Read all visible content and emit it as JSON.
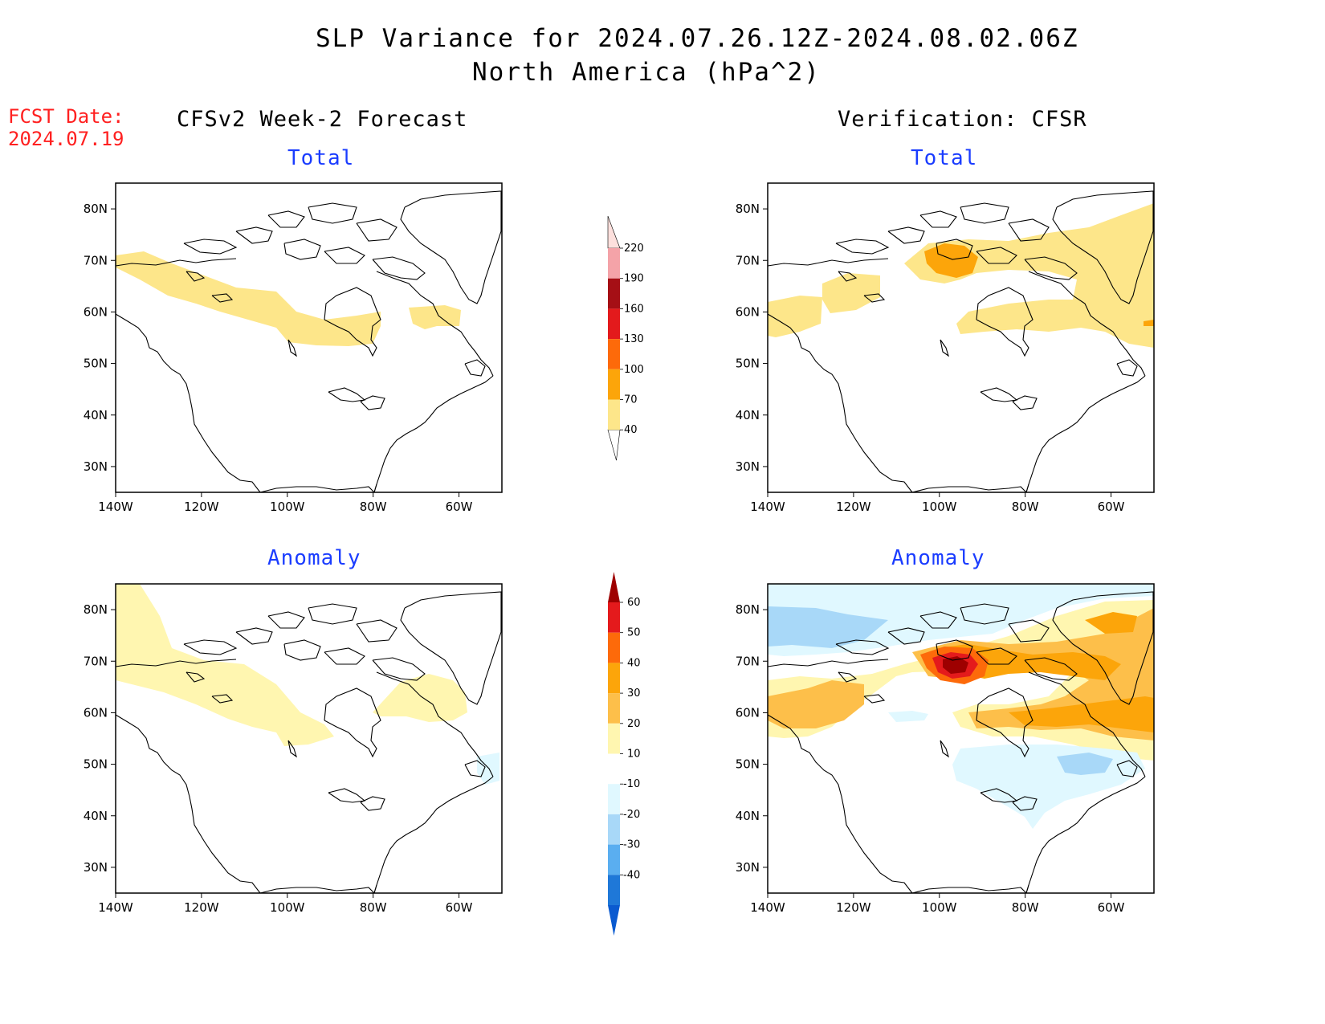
{
  "title": {
    "line1": "SLP Variance for 2024.07.26.12Z-2024.08.02.06Z",
    "line2": "North America (hPa^2)"
  },
  "fcst": {
    "label": "FCST Date:",
    "date": "2024.07.19"
  },
  "columns": {
    "left": "CFSv2 Week-2 Forecast",
    "right": "Verification: CFSR"
  },
  "panels": {
    "total_label": "Total",
    "anomaly_label": "Anomaly"
  },
  "axes": {
    "lat_labels": [
      "80N",
      "70N",
      "60N",
      "50N",
      "40N",
      "30N"
    ],
    "lon_labels": [
      "140W",
      "120W",
      "100W",
      "80W",
      "60W"
    ],
    "lon_range": [
      -140,
      -50
    ],
    "lat_range": [
      25,
      85
    ]
  },
  "colorbars": {
    "total": {
      "levels": [
        "40",
        "70",
        "100",
        "130",
        "160",
        "190",
        "220"
      ],
      "colors": [
        "#fde68a",
        "#fca50a",
        "#fd6a0a",
        "#e31a1c",
        "#a50f15",
        "#f4a3a8",
        "#fde0dd"
      ]
    },
    "anomaly": {
      "levels": [
        "60",
        "50",
        "40",
        "30",
        "20",
        "10",
        "-10",
        "-20",
        "-30",
        "-40"
      ],
      "colors": [
        "#9e0000",
        "#e41a1c",
        "#fd6a0a",
        "#fca50a",
        "#fdbf4a",
        "#fff6b0",
        "#ffffff",
        "#e0f8ff",
        "#a8d8f8",
        "#5aaef0",
        "#1f78d8",
        "#0a5ad0"
      ]
    }
  }
}
